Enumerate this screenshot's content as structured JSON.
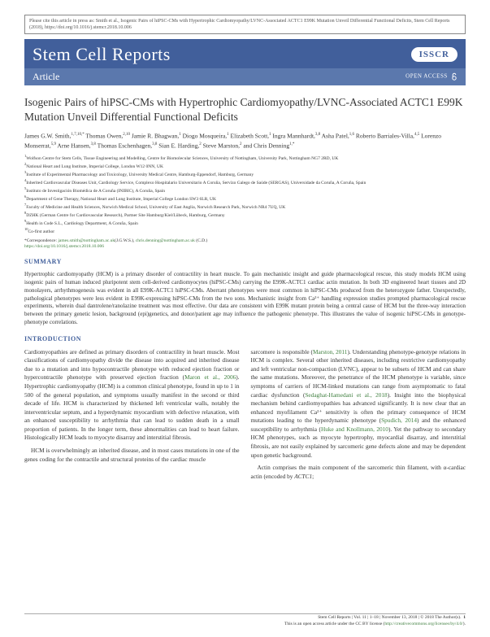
{
  "citation": "Please cite this article in press as: Smith et al., Isogenic Pairs of hiPSC-CMs with Hypertrophic Cardiomyopathy/LVNC-Associated ACTC1 E99K Mutation Unveil Differential Functional Deficits, Stem Cell Reports (2018), https://doi.org/10.1016/j.stemcr.2018.10.006",
  "header": {
    "journal": "Stem Cell Reports",
    "badge": "ISSCR",
    "article_label": "Article",
    "open_access": "OPEN ACCESS"
  },
  "title": "Isogenic Pairs of hiPSC-CMs with Hypertrophic Cardiomyopathy/LVNC-Associated ACTC1 E99K Mutation Unveil Differential Functional Deficits",
  "authors_html": "James G.W. Smith,<span class='sup'>1,7,10,*</span> Thomas Owen,<span class='sup'>2,10</span> Jamie R. Bhagwan,<span class='sup'>1</span> Diogo Mosqueira,<span class='sup'>1</span> Elizabeth Scott,<span class='sup'>1</span> Ingra Mannhardt,<span class='sup'>3,8</span> Asha Patel,<span class='sup'>1,6</span> Roberto Barriales-Villa,<span class='sup'>4,5</span> Lorenzo Monserrat,<span class='sup'>5,9</span> Arne Hansen,<span class='sup'>3,8</span> Thomas Eschenhagen,<span class='sup'>3,8</span> Sian E. Harding,<span class='sup'>2</span> Steve Marston,<span class='sup'>2</span> and Chris Denning<span class='sup'>1,*</span>",
  "affiliations": [
    {
      "n": "1",
      "text": "Wolfson Centre for Stem Cells, Tissue Engineering and Modelling, Centre for Biomolecular Sciences, University of Nottingham, University Park, Nottingham NG7 2RD, UK"
    },
    {
      "n": "2",
      "text": "National Heart and Lung Institute, Imperial College, London W12 0NN, UK"
    },
    {
      "n": "3",
      "text": "Institute of Experimental Pharmacology and Toxicology, University Medical Centre, Hamburg-Eppendorf, Hamburg, Germany"
    },
    {
      "n": "4",
      "text": "Inherited Cardiovascular Diseases Unit, Cardiology Service, Complexo Hospitalario Universitario A Coruña, Servizo Galego de Saúde (SERGAS), Universidade da Coruña, A Coruña, Spain"
    },
    {
      "n": "5",
      "text": "Instituto de Investigación Biomédica de A Coruña (INIBIC), A Coruña, Spain"
    },
    {
      "n": "6",
      "text": "Department of Gene Therapy, National Heart and Lung Institute, Imperial College London SW3 6LR, UK"
    },
    {
      "n": "7",
      "text": "Faculty of Medicine and Health Sciences, Norwich Medical School, University of East Anglia, Norwich Research Park, Norwich NR4 7UQ, UK"
    },
    {
      "n": "8",
      "text": "DZHK (German Centre for Cardiovascular Research), Partner Site Hamburg/Kiel/Lübeck, Hamburg, Germany"
    },
    {
      "n": "9",
      "text": "Health in Code S.L., Cardiology Department, A Coruña, Spain"
    },
    {
      "n": "10",
      "text": "Co-first author"
    }
  ],
  "correspondence": {
    "label": "*Correspondence: ",
    "emails": [
      "james.smith@nottingham.ac.uk",
      "chris.denning@nottingham.ac.uk"
    ],
    "names": [
      "(J.G.W.S.), ",
      " (C.D.)"
    ],
    "doi": "https://doi.org/10.1016/j.stemcr.2018.10.006"
  },
  "sections": {
    "summary_header": "SUMMARY",
    "summary_text": "Hypertrophic cardiomyopathy (HCM) is a primary disorder of contractility in heart muscle. To gain mechanistic insight and guide pharmacological rescue, this study models HCM using isogenic pairs of human induced pluripotent stem cell-derived cardiomyocytes (hiPSC-CMs) carrying the E99K-ACTC1 cardiac actin mutation. In both 3D engineered heart tissues and 2D monolayers, arrhythmogenesis was evident in all E99K-ACTC1 hiPSC-CMs. Aberrant phenotypes were most common in hiPSC-CMs produced from the heterozygote father. Unexpectedly, pathological phenotypes were less evident in E99K-expressing hiPSC-CMs from the two sons. Mechanistic insight from Ca²⁺ handling expression studies prompted pharmacological rescue experiments, wherein dual dantrolene/ranolazine treatment was most effective. Our data are consistent with E99K mutant protein being a central cause of HCM but the three-way interaction between the primary genetic lesion, background (epi)genetics, and donor/patient age may influence the pathogenic phenotype. This illustrates the value of isogenic hiPSC-CMs in genotype-phenotype correlations.",
    "intro_header": "INTRODUCTION",
    "intro_left_p1": "Cardiomyopathies are defined as primary disorders of contractility in heart muscle. Most classifications of cardiomyopathy divide the disease into acquired and inherited disease due to a mutation and into hypocontractile phenotype with reduced ejection fraction or hypercontractile phenotype with preserved ejection fraction (<span class='ref-link'>Maron et al., 2006</span>). Hypertrophic cardiomyopathy (HCM) is a common clinical phenotype, found in up to 1 in 500 of the general population, and symptoms usually manifest in the second or third decade of life. HCM is characterized by thickened left ventricular walls, notably the interventricular septum, and a hyperdynamic myocardium with defective relaxation, with an enhanced susceptibility to arrhythmia that can lead to sudden death in a small proportion of patients. In the longer term, these abnormalities can lead to heart failure. Histologically HCM leads to myocyte disarray and interstitial fibrosis.",
    "intro_left_p2": "HCM is overwhelmingly an inherited disease, and in most cases mutations in one of the genes coding for the contractile and structural proteins of the cardiac muscle",
    "intro_right_p1": "sarcomere is responsible (<span class='ref-link'>Marston, 2011</span>). Understanding phenotype-genotype relations in HCM is complex. Several other inherited diseases, including restrictive cardiomyopathy and left ventricular non-compaction (LVNC), appear to be subsets of HCM and can share the same mutations. Moreover, the penetrance of the HCM phenotype is variable, since symptoms of carriers of HCM-linked mutations can range from asymptomatic to fatal cardiac dysfunction (<span class='ref-link'>Sedaghat-Hamedani et al., 2018</span>). Insight into the biophysical mechanism behind cardiomyopathies has advanced significantly. It is now clear that an enhanced myofilament Ca²⁺ sensitivity is often the primary consequence of HCM mutations leading to the hyperdynamic phenotype (<span class='ref-link'>Spudich, 2014</span>) and the enhanced susceptibility to arrhythmia (<span class='ref-link'>Huke and Knollmann, 2010</span>). Yet the pathway to secondary HCM phenotypes, such as myocyte hypertrophy, myocardial disarray, and interstitial fibrosis, are not easily explained by sarcomeric gene defects alone and may be dependent upon genetic background.",
    "intro_right_p2": "Actin comprises the main component of the sarcomeric thin filament, with α-cardiac actin (encoded by <i>ACTC1</i>;"
  },
  "footer": {
    "line1": "Stem Cell Reports | Vol. 11 | 1–18 | November 13, 2018 | © 2018 The Author(s).",
    "line2": "This is an open access article under the CC BY license (",
    "license_url": "http://creativecommons.org/licenses/by/4.0/",
    "page": "1"
  },
  "colors": {
    "header_bg": "#415f9b",
    "subheader_bg": "#5b78ad",
    "link": "#3f7f3f"
  }
}
